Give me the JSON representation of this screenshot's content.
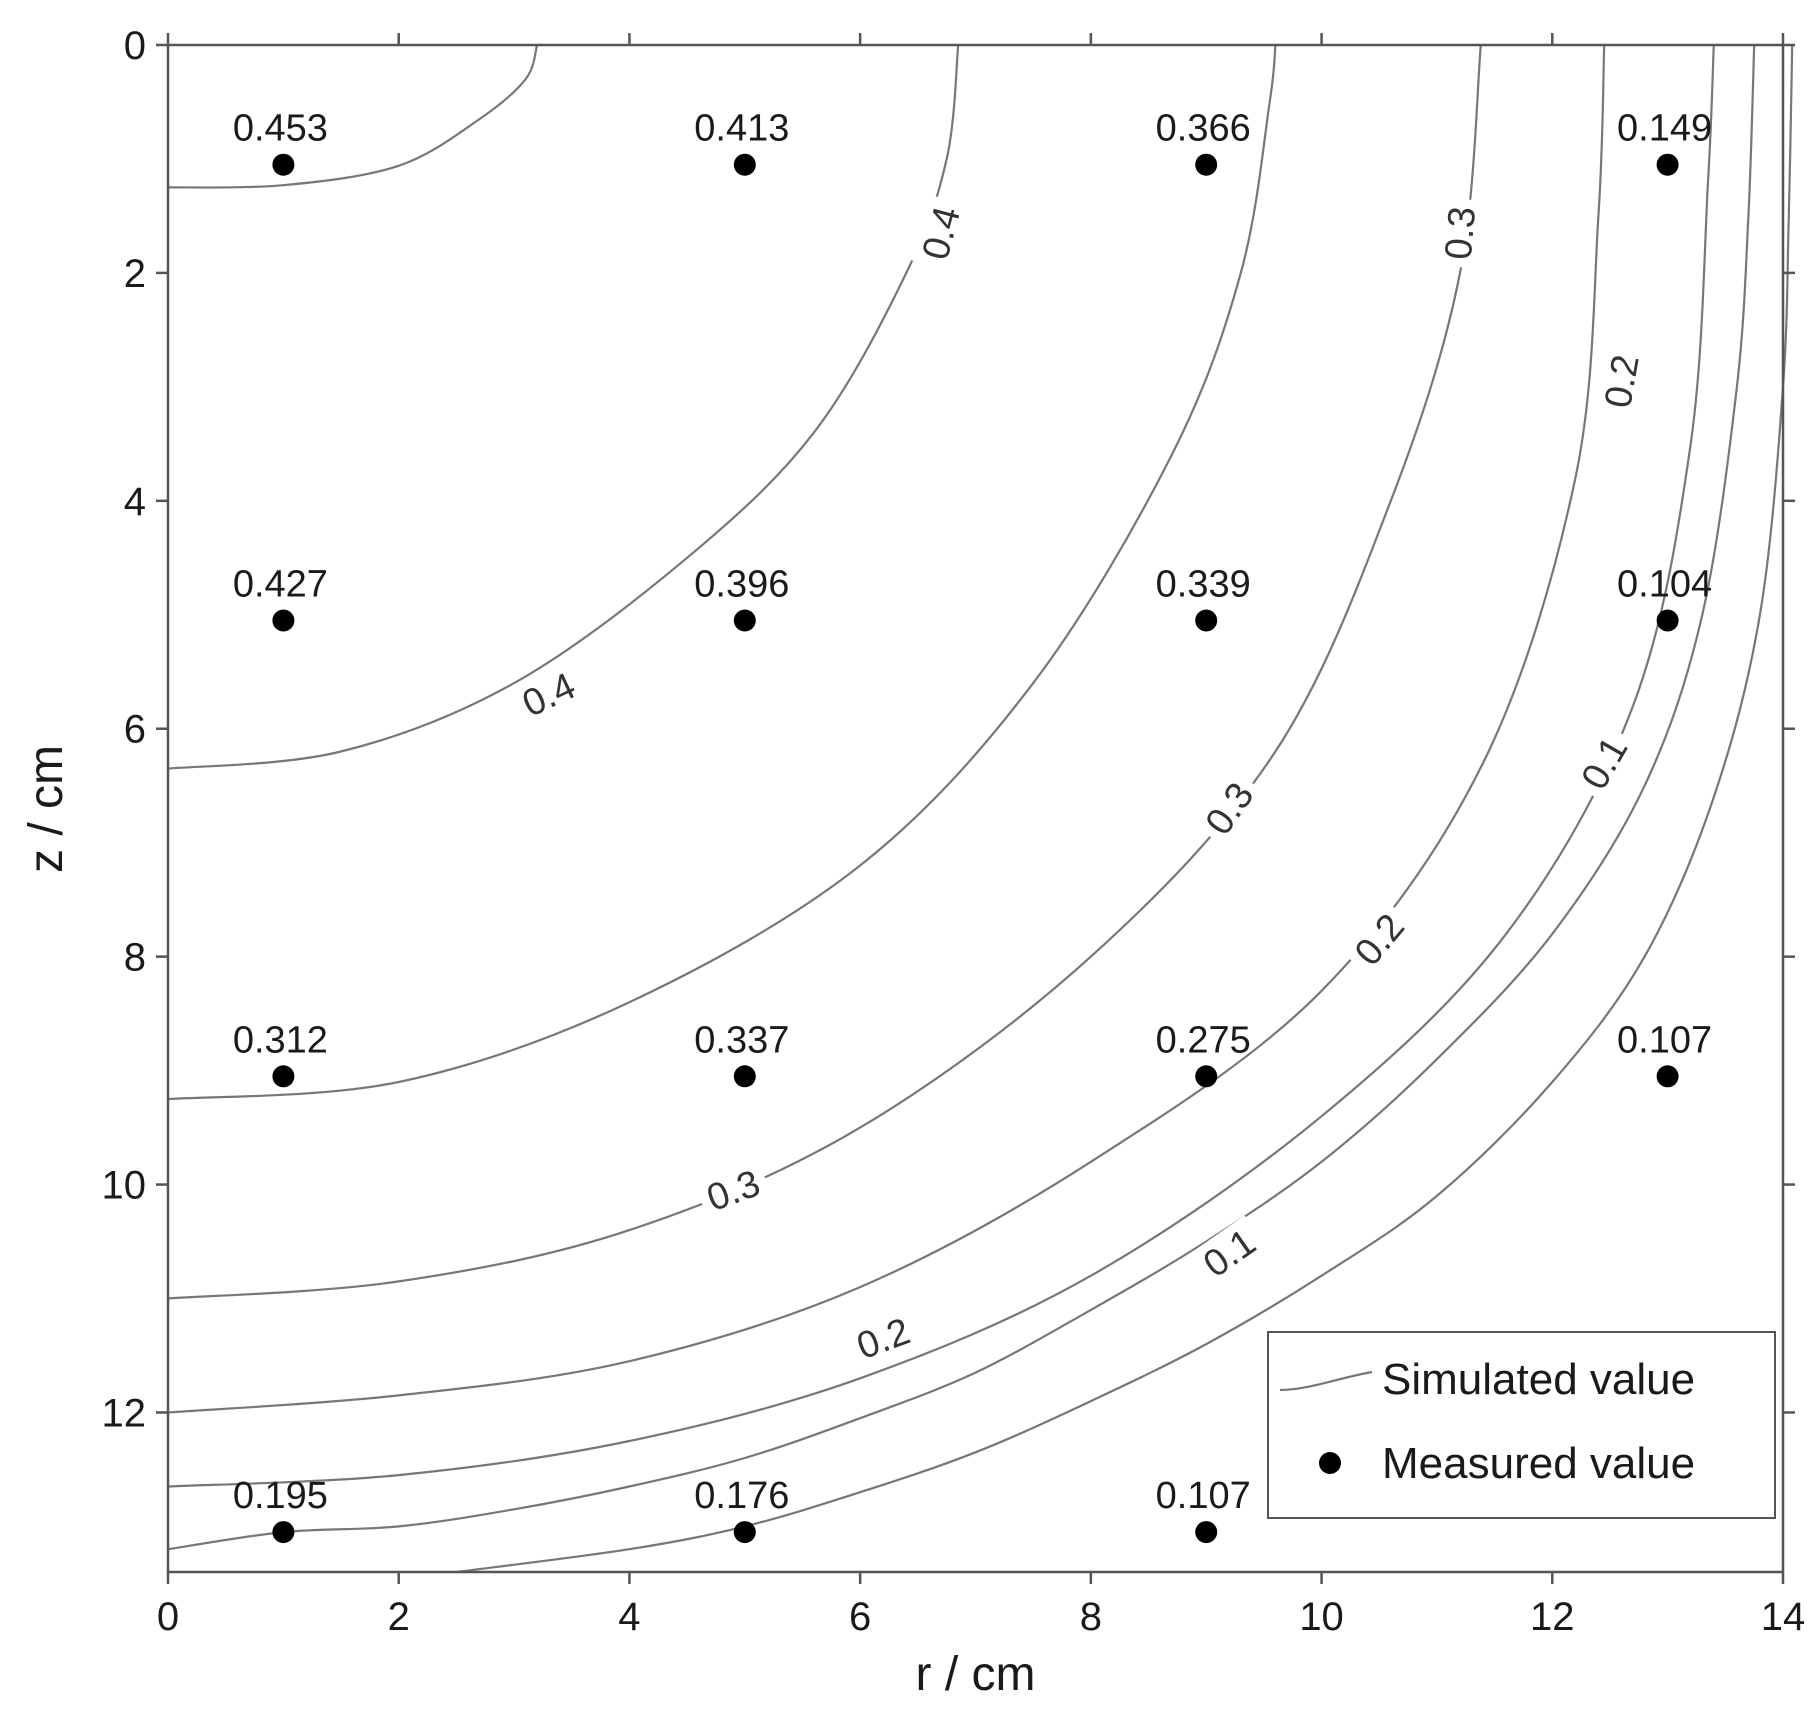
{
  "chart_data": {
    "type": "contour",
    "xlabel": "r / cm",
    "ylabel": "z / cm",
    "xlim": [
      0,
      14
    ],
    "ylim": [
      0,
      13.4
    ],
    "y_inverted": true,
    "x_ticks": [
      0,
      2,
      4,
      6,
      8,
      10,
      12,
      14
    ],
    "y_ticks": [
      0,
      2,
      4,
      6,
      8,
      10,
      12
    ],
    "x_tick_labels": [
      "0",
      "2",
      "4",
      "6",
      "8",
      "10",
      "12",
      "14"
    ],
    "y_tick_labels": [
      "0",
      "2",
      "4",
      "6",
      "8",
      "10",
      "12"
    ],
    "grid": false,
    "legend": {
      "placement": "bottom-right",
      "entries": [
        {
          "label": "Simulated value",
          "marker": "line"
        },
        {
          "label": "Measured value",
          "marker": "dot"
        }
      ]
    },
    "contour_lines": [
      {
        "points": [
          [
            0,
            1.25
          ],
          [
            1.0,
            1.23
          ],
          [
            2.0,
            1.06
          ],
          [
            2.7,
            0.65
          ],
          [
            3.1,
            0.3
          ],
          [
            3.2,
            0
          ]
        ]
      },
      {
        "points": [
          [
            0,
            6.35
          ],
          [
            1.5,
            6.2
          ],
          [
            3.0,
            5.6
          ],
          [
            4.5,
            4.5
          ],
          [
            5.6,
            3.4
          ],
          [
            6.4,
            2.0
          ],
          [
            6.75,
            1.0
          ],
          [
            6.85,
            0
          ]
        ]
      },
      {
        "points": [
          [
            0,
            9.25
          ],
          [
            2.0,
            9.1
          ],
          [
            4.0,
            8.4
          ],
          [
            6.0,
            7.2
          ],
          [
            7.5,
            5.6
          ],
          [
            8.7,
            3.6
          ],
          [
            9.3,
            2.0
          ],
          [
            9.55,
            0.5
          ],
          [
            9.6,
            0
          ]
        ]
      },
      {
        "points": [
          [
            0,
            11.0
          ],
          [
            2.0,
            10.85
          ],
          [
            4.0,
            10.4
          ],
          [
            6.0,
            9.5
          ],
          [
            8.0,
            8.0
          ],
          [
            9.6,
            6.2
          ],
          [
            10.6,
            4.0
          ],
          [
            11.2,
            2.0
          ],
          [
            11.38,
            0
          ]
        ]
      },
      {
        "points": [
          [
            0,
            12.0
          ],
          [
            2.0,
            11.85
          ],
          [
            4.0,
            11.55
          ],
          [
            6.0,
            10.9
          ],
          [
            8.0,
            9.8
          ],
          [
            10.0,
            8.3
          ],
          [
            11.4,
            6.3
          ],
          [
            12.2,
            3.8
          ],
          [
            12.4,
            1.5
          ],
          [
            12.45,
            0
          ]
        ]
      },
      {
        "points": [
          [
            0,
            12.65
          ],
          [
            2.0,
            12.55
          ],
          [
            4.0,
            12.25
          ],
          [
            6.0,
            11.7
          ],
          [
            8.0,
            10.8
          ],
          [
            10.0,
            9.4
          ],
          [
            11.6,
            7.8
          ],
          [
            12.7,
            5.8
          ],
          [
            13.2,
            3.5
          ],
          [
            13.35,
            1.2
          ],
          [
            13.4,
            0
          ]
        ]
      },
      {
        "points": [
          [
            0,
            13.2
          ],
          [
            1.0,
            13.05
          ],
          [
            2.0,
            13.0
          ],
          [
            3.0,
            12.85
          ],
          [
            4.0,
            12.65
          ],
          [
            5.0,
            12.4
          ],
          [
            6.0,
            12.05
          ],
          [
            7.0,
            11.65
          ],
          [
            8.0,
            11.1
          ],
          [
            9.0,
            10.5
          ],
          [
            10.0,
            9.8
          ],
          [
            11.0,
            8.9
          ],
          [
            12.0,
            7.8
          ],
          [
            12.8,
            6.5
          ],
          [
            13.3,
            5.0
          ],
          [
            13.6,
            3.0
          ],
          [
            13.7,
            1.5
          ],
          [
            13.75,
            0
          ]
        ]
      },
      {
        "points": [
          [
            2.5,
            13.4
          ],
          [
            4.0,
            13.2
          ],
          [
            5.0,
            13.0
          ],
          [
            6.0,
            12.7
          ],
          [
            7.0,
            12.35
          ],
          [
            8.0,
            11.9
          ],
          [
            9.0,
            11.4
          ],
          [
            10.0,
            10.8
          ],
          [
            11.0,
            10.1
          ],
          [
            12.0,
            9.1
          ],
          [
            12.8,
            8.0
          ],
          [
            13.4,
            6.6
          ],
          [
            13.8,
            5.0
          ],
          [
            14.0,
            3.0
          ],
          [
            14.05,
            1.5
          ],
          [
            14.08,
            0
          ]
        ]
      }
    ],
    "contour_labels": [
      {
        "text": "0.4",
        "x": 6.7,
        "z": 1.65,
        "rotation": -75
      },
      {
        "text": "0.4",
        "x": 3.3,
        "z": 5.7,
        "rotation": -25
      },
      {
        "text": "0.3",
        "x": 11.2,
        "z": 1.65,
        "rotation": -85
      },
      {
        "text": "0.3",
        "x": 9.2,
        "z": 6.7,
        "rotation": -55
      },
      {
        "text": "0.3",
        "x": 4.9,
        "z": 10.05,
        "rotation": -20
      },
      {
        "text": "0.2",
        "x": 12.6,
        "z": 2.95,
        "rotation": -80
      },
      {
        "text": "0.2",
        "x": 10.5,
        "z": 7.85,
        "rotation": -50
      },
      {
        "text": "0.2",
        "x": 6.2,
        "z": 11.35,
        "rotation": -20
      },
      {
        "text": "0.1",
        "x": 12.45,
        "z": 6.3,
        "rotation": -60
      },
      {
        "text": "0.1",
        "x": 9.2,
        "z": 10.6,
        "rotation": -35
      }
    ],
    "measured_points": [
      {
        "r": 1,
        "z": 1.05,
        "value": "0.453"
      },
      {
        "r": 5,
        "z": 1.05,
        "value": "0.413"
      },
      {
        "r": 9,
        "z": 1.05,
        "value": "0.366"
      },
      {
        "r": 13,
        "z": 1.05,
        "value": "0.149"
      },
      {
        "r": 1,
        "z": 5.05,
        "value": "0.427"
      },
      {
        "r": 5,
        "z": 5.05,
        "value": "0.396"
      },
      {
        "r": 9,
        "z": 5.05,
        "value": "0.339"
      },
      {
        "r": 13,
        "z": 5.05,
        "value": "0.104"
      },
      {
        "r": 1,
        "z": 9.05,
        "value": "0.312"
      },
      {
        "r": 5,
        "z": 9.05,
        "value": "0.337"
      },
      {
        "r": 9,
        "z": 9.05,
        "value": "0.275"
      },
      {
        "r": 13,
        "z": 9.05,
        "value": "0.107"
      },
      {
        "r": 1,
        "z": 13.05,
        "value": "0.195"
      },
      {
        "r": 5,
        "z": 13.05,
        "value": "0.176"
      },
      {
        "r": 9,
        "z": 13.05,
        "value": "0.107"
      }
    ]
  }
}
